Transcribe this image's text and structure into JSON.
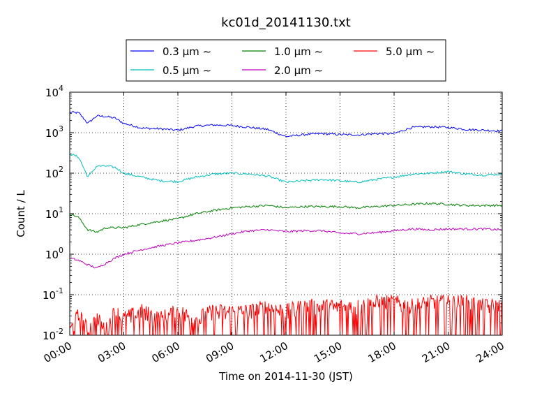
{
  "chart_data": {
    "type": "line",
    "title": "kc01d_20141130.txt",
    "xlabel": "Time on 2014-11-30 (JST)",
    "ylabel": "Count / L",
    "yscale": "log",
    "ylim": [
      0.01,
      10000
    ],
    "xlim": [
      "00:00",
      "24:00"
    ],
    "x_ticks": [
      "00:00",
      "03:00",
      "06:00",
      "09:00",
      "12:00",
      "15:00",
      "18:00",
      "21:00",
      "24:00"
    ],
    "y_ticks": [
      {
        "base": "10",
        "exp": "-2"
      },
      {
        "base": "10",
        "exp": "-1"
      },
      {
        "base": "10",
        "exp": "0"
      },
      {
        "base": "10",
        "exp": "1"
      },
      {
        "base": "10",
        "exp": "2"
      },
      {
        "base": "10",
        "exp": "3"
      },
      {
        "base": "10",
        "exp": "4"
      }
    ],
    "grid": true,
    "legend_position": "top-center",
    "x": [
      "00:00",
      "00:30",
      "01:00",
      "01:30",
      "02:00",
      "02:30",
      "03:00",
      "04:00",
      "05:00",
      "06:00",
      "07:00",
      "08:00",
      "09:00",
      "10:00",
      "11:00",
      "12:00",
      "13:00",
      "14:00",
      "15:00",
      "16:00",
      "17:00",
      "18:00",
      "19:00",
      "20:00",
      "21:00",
      "22:00",
      "23:00",
      "24:00"
    ],
    "series": [
      {
        "name": "0.3 μm ∼",
        "color": "#0000ff",
        "values": [
          3200,
          3100,
          1700,
          2600,
          2500,
          2300,
          1700,
          1300,
          1250,
          1150,
          1450,
          1550,
          1500,
          1350,
          1200,
          800,
          900,
          950,
          900,
          880,
          950,
          950,
          1350,
          1400,
          1350,
          1200,
          1150,
          1100
        ]
      },
      {
        "name": "0.5 μm ∼",
        "color": "#00bfbf",
        "values": [
          300,
          250,
          80,
          150,
          150,
          140,
          100,
          80,
          65,
          62,
          80,
          95,
          100,
          95,
          85,
          60,
          65,
          70,
          65,
          60,
          70,
          80,
          95,
          100,
          110,
          95,
          90,
          95
        ]
      },
      {
        "name": "1.0 μm ∼",
        "color": "#008000",
        "values": [
          10,
          8,
          4,
          3.5,
          4.5,
          4.5,
          4.5,
          5.5,
          6.5,
          7.5,
          10,
          12,
          14,
          15,
          16,
          14,
          15,
          15,
          15,
          14,
          15,
          16,
          17,
          18,
          17,
          16,
          16,
          16
        ]
      },
      {
        "name": "2.0 μm ∼",
        "color": "#bf00bf",
        "values": [
          0.8,
          0.7,
          0.55,
          0.45,
          0.6,
          0.8,
          1.0,
          1.3,
          1.6,
          1.9,
          2.2,
          2.6,
          3.2,
          3.8,
          4.0,
          3.6,
          3.8,
          3.8,
          3.3,
          3.2,
          3.4,
          3.8,
          4.2,
          4.0,
          4.2,
          4.2,
          4.2,
          4.0
        ]
      },
      {
        "name": "5.0 μm ∼",
        "color": "#ff0000",
        "values": [
          0.01,
          0.025,
          0.01,
          0.02,
          0.01,
          0.03,
          0.02,
          0.03,
          0.02,
          0.03,
          0.02,
          0.03,
          0.03,
          0.03,
          0.04,
          0.03,
          0.04,
          0.04,
          0.04,
          0.04,
          0.05,
          0.05,
          0.04,
          0.05,
          0.05,
          0.05,
          0.04,
          0.04
        ]
      }
    ]
  }
}
